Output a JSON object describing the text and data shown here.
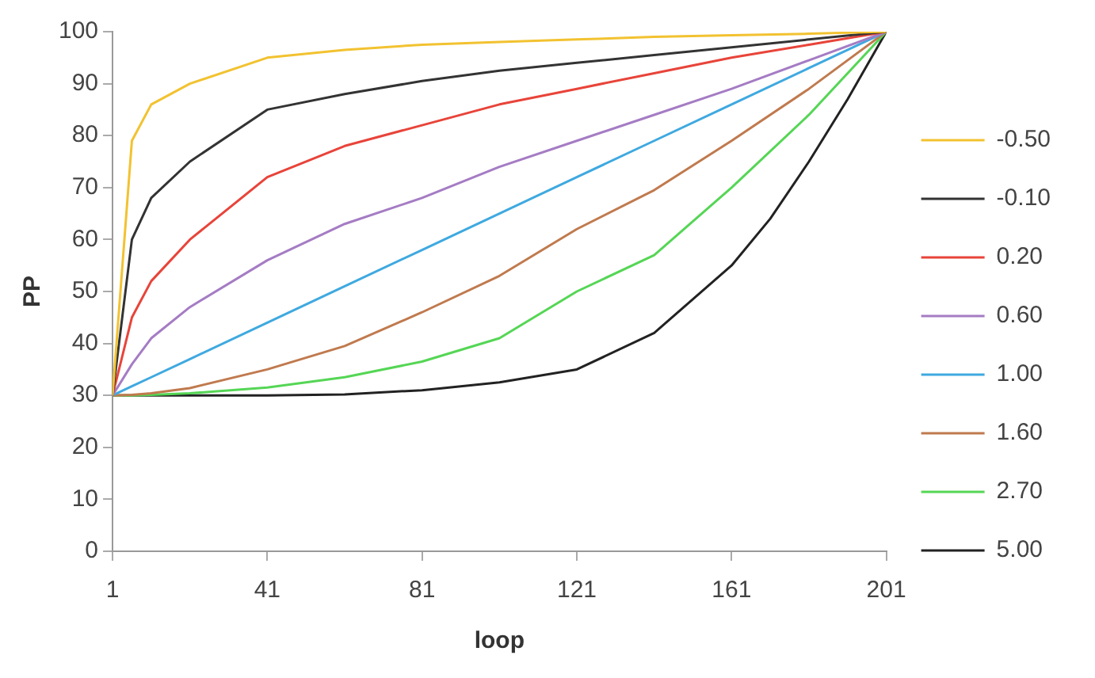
{
  "chart_data": {
    "type": "line",
    "xlabel": "loop",
    "ylabel": "PP",
    "x": [
      1,
      6,
      11,
      21,
      41,
      61,
      81,
      101,
      121,
      141,
      161,
      181,
      201
    ],
    "series": [
      {
        "name": "-0.50",
        "color": "#f2c230",
        "values": [
          30,
          79,
          86,
          90,
          95,
          96.5,
          97.5,
          98,
          98.5,
          99,
          99.3,
          99.6,
          100
        ]
      },
      {
        "name": "-0.10",
        "color": "#333333",
        "values": [
          30,
          60,
          68,
          75,
          85,
          88,
          90.5,
          92.5,
          94,
          95.5,
          97,
          98.5,
          100
        ]
      },
      {
        "name": "0.20",
        "color": "#e8443a",
        "values": [
          30,
          45,
          52,
          60,
          72,
          78,
          82,
          86,
          89,
          92,
          95,
          97.5,
          100
        ]
      },
      {
        "name": "0.60",
        "color": "#a57cc4",
        "values": [
          30,
          36,
          41,
          47,
          56,
          63,
          68,
          74,
          79,
          84,
          89,
          94.5,
          100
        ]
      },
      {
        "name": "1.00",
        "color": "#3fa9e0",
        "values": [
          30,
          31.75,
          33.5,
          37,
          44,
          51,
          58,
          65,
          72,
          79,
          86,
          93,
          100
        ]
      },
      {
        "name": "1.60",
        "color": "#c07a4e",
        "values": [
          30,
          30.1,
          30.4,
          31.4,
          35,
          39.5,
          46,
          53,
          62,
          69.5,
          79,
          89,
          100
        ]
      },
      {
        "name": "2.70",
        "color": "#55d655",
        "values": [
          30,
          30,
          30.1,
          30.4,
          31.5,
          33.5,
          36.5,
          41,
          50,
          57,
          70,
          84,
          100
        ]
      },
      {
        "name": "5.00",
        "color": "#222222",
        "x": [
          1,
          41,
          61,
          81,
          101,
          121,
          141,
          161,
          171,
          181,
          191,
          201
        ],
        "values": [
          30,
          30,
          30.2,
          31,
          32.5,
          35,
          42,
          55,
          64,
          75,
          87,
          100
        ]
      }
    ],
    "xlim": [
      1,
      201
    ],
    "xticks": [
      1,
      41,
      81,
      121,
      161,
      201
    ],
    "ylim": [
      0,
      100
    ],
    "yticks": [
      0,
      10,
      20,
      30,
      40,
      50,
      60,
      70,
      80,
      90,
      100
    ],
    "grid": false,
    "legend": "right",
    "marker": "none",
    "line_style": "solid"
  }
}
